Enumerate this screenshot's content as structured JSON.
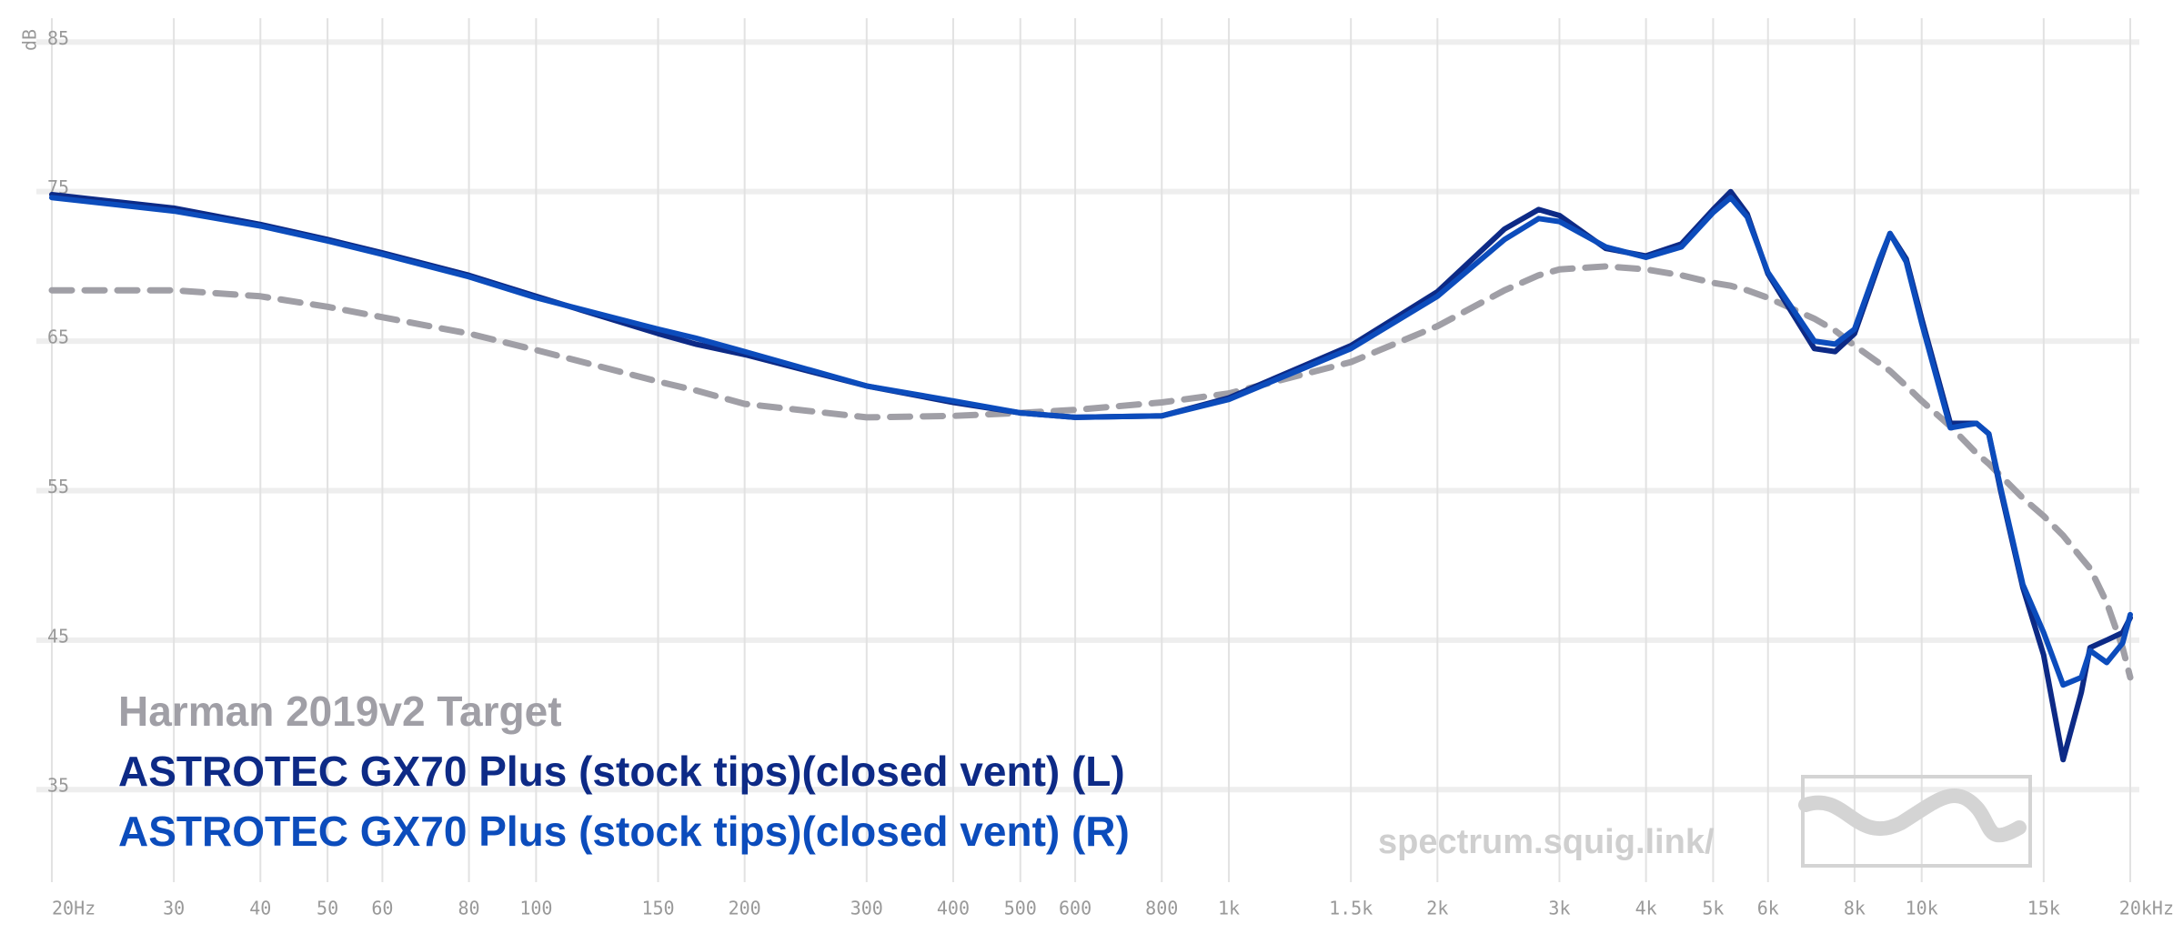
{
  "chart_data": {
    "type": "line",
    "y_label": "dB",
    "log_x": true,
    "grid": true,
    "watermark": "spectrum.squig.link/",
    "x": [
      20,
      30,
      40,
      50,
      60,
      80,
      100,
      150,
      170,
      200,
      300,
      400,
      500,
      600,
      800,
      1000,
      1500,
      2000,
      2500,
      2800,
      3000,
      3500,
      4000,
      4500,
      5000,
      5300,
      5600,
      6000,
      7000,
      7500,
      8000,
      8700,
      9000,
      9500,
      10000,
      11000,
      12000,
      12500,
      13000,
      14000,
      15000,
      16000,
      17000,
      17500,
      18500,
      19500,
      20000
    ],
    "series": [
      {
        "name": "Harman 2019v2 Target",
        "color": "#a09fa6",
        "dashed": true,
        "values": [
          68.4,
          68.4,
          68.0,
          67.3,
          66.6,
          65.5,
          64.4,
          62.3,
          61.7,
          60.8,
          59.9,
          60.0,
          60.2,
          60.4,
          60.9,
          61.5,
          63.6,
          66.0,
          68.4,
          69.4,
          69.8,
          70.0,
          69.8,
          69.4,
          68.9,
          68.7,
          68.4,
          67.9,
          66.5,
          65.7,
          64.7,
          63.5,
          63.0,
          62.0,
          61.0,
          59.3,
          57.5,
          56.8,
          56.0,
          54.5,
          53.3,
          52.0,
          50.5,
          49.8,
          47.5,
          44.5,
          42.5
        ]
      },
      {
        "name": "ASTROTEC GX70 Plus (stock tips)(closed vent) (L)",
        "color": "#0d2a86",
        "dashed": false,
        "values": [
          74.8,
          73.9,
          72.8,
          71.8,
          70.9,
          69.4,
          68.0,
          65.5,
          64.8,
          64.1,
          62.0,
          60.9,
          60.2,
          59.9,
          60.0,
          61.2,
          64.7,
          68.3,
          72.5,
          73.8,
          73.4,
          71.2,
          70.7,
          71.5,
          73.8,
          75.0,
          73.5,
          69.5,
          64.5,
          64.3,
          65.5,
          70.3,
          72.2,
          70.5,
          66.5,
          59.5,
          59.5,
          58.8,
          55.0,
          48.5,
          44.0,
          37.0,
          41.5,
          44.5,
          45.0,
          45.5,
          46.5
        ]
      },
      {
        "name": "ASTROTEC GX70 Plus (stock tips)(closed vent) (R)",
        "color": "#0c4cbc",
        "dashed": false,
        "values": [
          74.6,
          73.7,
          72.7,
          71.7,
          70.8,
          69.3,
          67.9,
          65.8,
          65.2,
          64.3,
          62.0,
          61.0,
          60.2,
          59.9,
          60.0,
          61.1,
          64.5,
          68.0,
          71.8,
          73.2,
          73.0,
          71.3,
          70.6,
          71.3,
          73.6,
          74.6,
          73.3,
          69.6,
          65.0,
          64.8,
          65.8,
          70.5,
          72.2,
          70.3,
          66.2,
          59.2,
          59.5,
          58.8,
          55.2,
          48.7,
          45.5,
          42.0,
          42.5,
          44.3,
          43.5,
          44.8,
          46.7
        ]
      }
    ],
    "xlim": [
      20,
      20000
    ],
    "xticks": [
      {
        "value": 20,
        "label": "20Hz"
      },
      30,
      40,
      50,
      60,
      80,
      100,
      150,
      200,
      300,
      400,
      500,
      600,
      800,
      {
        "value": 1000,
        "label": "1k"
      },
      {
        "value": 1500,
        "label": "1.5k"
      },
      {
        "value": 2000,
        "label": "2k"
      },
      {
        "value": 3000,
        "label": "3k"
      },
      {
        "value": 4000,
        "label": "4k"
      },
      {
        "value": 5000,
        "label": "5k"
      },
      {
        "value": 6000,
        "label": "6k"
      },
      {
        "value": 8000,
        "label": "8k"
      },
      {
        "value": 10000,
        "label": "10k"
      },
      {
        "value": 15000,
        "label": "15k"
      },
      {
        "value": 20000,
        "label": "20kHz"
      }
    ],
    "ylim": [
      28.2,
      86.6
    ],
    "yticks": [
      35,
      45,
      55,
      65,
      75,
      85
    ]
  }
}
